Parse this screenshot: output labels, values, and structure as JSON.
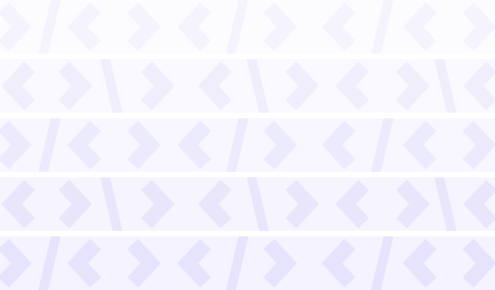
{
  "pattern": {
    "name": "code-chevron-pattern",
    "icons": [
      "chevron-left-icon",
      "chevron-right-icon",
      "slash-icon"
    ],
    "bands": [
      {
        "name": "band-1",
        "variant": "a",
        "background": "#fcfcff",
        "glyph_color": "#f5f4fe"
      },
      {
        "name": "band-2",
        "variant": "b",
        "background": "#faf9ff",
        "glyph_color": "#f0eefd"
      },
      {
        "name": "band-3",
        "variant": "a",
        "background": "#f8f7ff",
        "glyph_color": "#eceafd"
      },
      {
        "name": "band-4",
        "variant": "b",
        "background": "#f6f5ff",
        "glyph_color": "#e9e6fc"
      },
      {
        "name": "band-5",
        "variant": "a",
        "background": "#f4f3ff",
        "glyph_color": "#e6e3fc"
      }
    ]
  }
}
